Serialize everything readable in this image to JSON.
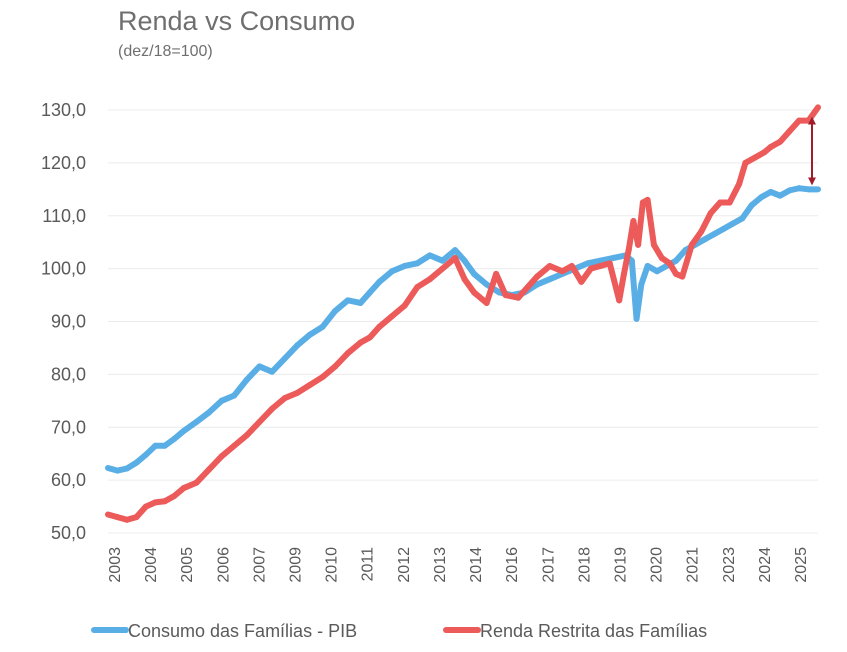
{
  "chart_data": {
    "type": "line",
    "title": "Renda vs Consumo",
    "subtitle": "(dez/18=100)",
    "xlabel": "",
    "ylabel": "",
    "ylim": [
      50,
      130
    ],
    "xlim": [
      2003,
      2025.5
    ],
    "y_ticks": [
      "130,0",
      "120,0",
      "110,0",
      "100,0",
      "90,0",
      "80,0",
      "70,0",
      "60,0",
      "50,0"
    ],
    "y_tick_values": [
      130,
      120,
      110,
      100,
      90,
      80,
      70,
      60,
      50
    ],
    "x_ticks": [
      "2003",
      "2004",
      "2005",
      "2006",
      "2007",
      "2009",
      "2010",
      "2011",
      "2012",
      "2013",
      "2014",
      "2016",
      "2017",
      "2018",
      "2019",
      "2020",
      "2021",
      "2023",
      "2024",
      "2025"
    ],
    "grid": true,
    "legend_position": "bottom",
    "annotation": "double-arrow between series at end of period",
    "series": [
      {
        "name": "Consumo das Famílias - PIB",
        "color": "#5aaee6",
        "x": [
          2003.0,
          2003.3,
          2003.6,
          2003.9,
          2004.2,
          2004.5,
          2004.8,
          2005.1,
          2005.4,
          2005.8,
          2006.2,
          2006.6,
          2007.0,
          2007.4,
          2007.8,
          2008.2,
          2008.6,
          2009.0,
          2009.4,
          2009.8,
          2010.2,
          2010.6,
          2011.0,
          2011.3,
          2011.6,
          2012.0,
          2012.4,
          2012.8,
          2013.2,
          2013.6,
          2014.0,
          2014.3,
          2014.6,
          2015.0,
          2015.4,
          2015.8,
          2016.2,
          2016.6,
          2017.0,
          2017.4,
          2017.8,
          2018.2,
          2018.6,
          2019.0,
          2019.4,
          2019.6,
          2019.75,
          2019.9,
          2020.1,
          2020.4,
          2020.7,
          2021.0,
          2021.3,
          2021.6,
          2021.9,
          2022.2,
          2022.5,
          2022.8,
          2023.1,
          2023.4,
          2023.7,
          2024.0,
          2024.3,
          2024.6,
          2024.9,
          2025.2,
          2025.5
        ],
        "y": [
          62.3,
          61.8,
          62.2,
          63.3,
          64.8,
          66.5,
          66.5,
          67.8,
          69.3,
          71.0,
          72.8,
          75.0,
          76.0,
          79.0,
          81.5,
          80.5,
          83.0,
          85.5,
          87.5,
          89.0,
          92.0,
          94.0,
          93.5,
          95.5,
          97.5,
          99.5,
          100.5,
          101.0,
          102.5,
          101.5,
          103.5,
          101.5,
          99.0,
          97.0,
          95.5,
          95.0,
          95.5,
          97.0,
          98.0,
          99.0,
          100.0,
          101.0,
          101.5,
          102.0,
          102.5,
          101.5,
          90.5,
          97.0,
          100.5,
          99.5,
          100.5,
          101.5,
          103.5,
          104.5,
          105.5,
          106.5,
          107.5,
          108.5,
          109.5,
          112.0,
          113.5,
          114.5,
          113.8,
          114.8,
          115.2,
          115.0,
          115.0
        ]
      },
      {
        "name": "Renda Restrita das Famílias",
        "color": "#ec5a5a",
        "x": [
          2003.0,
          2003.3,
          2003.6,
          2003.9,
          2004.2,
          2004.5,
          2004.8,
          2005.1,
          2005.4,
          2005.8,
          2006.2,
          2006.6,
          2007.0,
          2007.4,
          2007.8,
          2008.2,
          2008.6,
          2009.0,
          2009.4,
          2009.8,
          2010.2,
          2010.6,
          2011.0,
          2011.3,
          2011.6,
          2012.0,
          2012.4,
          2012.8,
          2013.2,
          2013.6,
          2014.0,
          2014.3,
          2014.6,
          2015.0,
          2015.3,
          2015.6,
          2016.0,
          2016.3,
          2016.6,
          2017.0,
          2017.4,
          2017.7,
          2018.0,
          2018.3,
          2018.6,
          2018.9,
          2019.2,
          2019.35,
          2019.5,
          2019.65,
          2019.8,
          2019.95,
          2020.1,
          2020.3,
          2020.55,
          2020.8,
          2021.0,
          2021.2,
          2021.5,
          2021.8,
          2022.1,
          2022.4,
          2022.7,
          2023.0,
          2023.2,
          2023.5,
          2023.8,
          2024.0,
          2024.3,
          2024.6,
          2024.9,
          2025.2,
          2025.5
        ],
        "y": [
          53.5,
          53.0,
          52.5,
          53.0,
          55.0,
          55.8,
          56.0,
          57.0,
          58.5,
          59.5,
          62.0,
          64.5,
          66.5,
          68.5,
          71.0,
          73.5,
          75.5,
          76.5,
          78.0,
          79.5,
          81.5,
          84.0,
          86.0,
          87.0,
          89.0,
          91.0,
          93.0,
          96.5,
          98.0,
          100.0,
          102.0,
          98.0,
          95.5,
          93.5,
          99.0,
          95.0,
          94.5,
          96.5,
          98.5,
          100.5,
          99.5,
          100.5,
          97.5,
          100.0,
          100.5,
          101.0,
          94.0,
          99.0,
          103.5,
          109.0,
          104.5,
          112.5,
          113.0,
          104.5,
          102.0,
          101.0,
          99.0,
          98.5,
          104.5,
          107.0,
          110.5,
          112.5,
          112.5,
          116.0,
          120.0,
          121.0,
          122.0,
          123.0,
          124.0,
          126.0,
          128.0,
          128.0,
          130.5
        ]
      }
    ]
  }
}
